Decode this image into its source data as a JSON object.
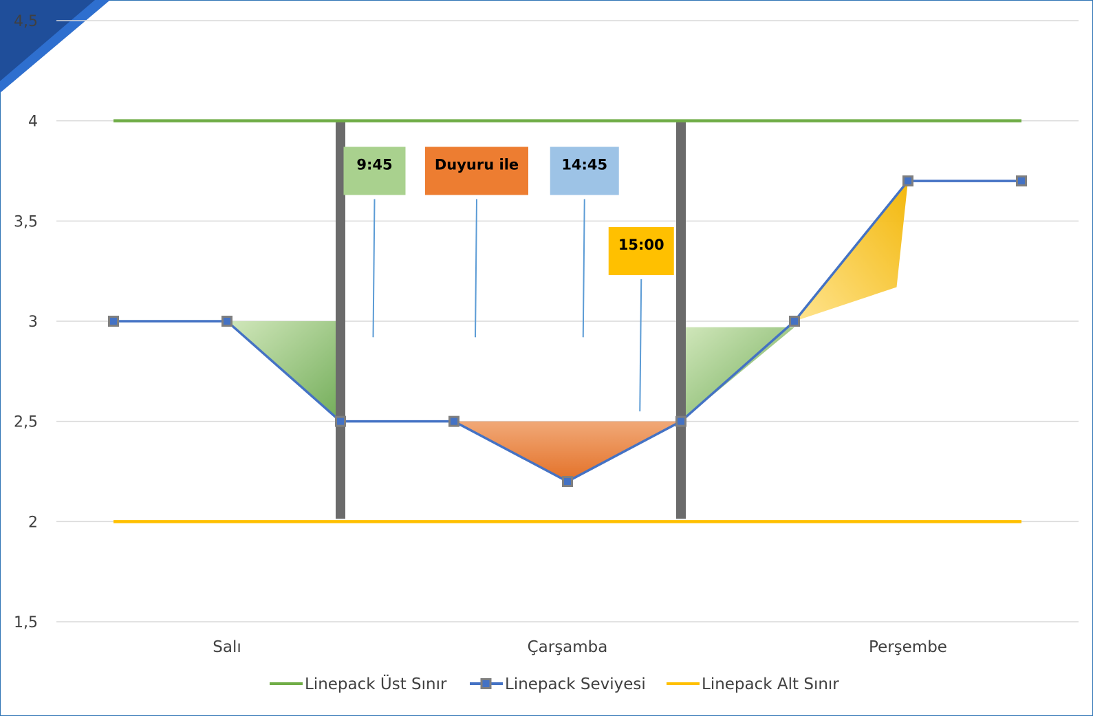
{
  "chart_data": {
    "type": "line",
    "categories": [
      "Salı",
      "Çarşamba",
      "Perşembe"
    ],
    "ylim": [
      1.5,
      4.5
    ],
    "yticks": [
      "1,5",
      "2",
      "2,5",
      "3",
      "3,5",
      "4",
      "4,5"
    ],
    "ytick_values": [
      1.5,
      2,
      2.5,
      3,
      3.5,
      4,
      4.5
    ],
    "grid": true,
    "legend_position": "bottom",
    "series": [
      {
        "name": "Linepack Üst Sınır",
        "color": "#70AD47",
        "marker": false,
        "x": [
          0,
          8
        ],
        "values": [
          4,
          4
        ]
      },
      {
        "name": "Linepack Seviyesi",
        "color": "#4472C4",
        "marker": true,
        "x": [
          0,
          1,
          2,
          3,
          4,
          5,
          6,
          7,
          8
        ],
        "values": [
          3,
          3,
          2.5,
          2.5,
          2.2,
          2.5,
          3,
          3.7,
          3.7
        ]
      },
      {
        "name": "Linepack Alt Sınır",
        "color": "#FFC000",
        "marker": false,
        "x": [
          0,
          8
        ],
        "values": [
          2,
          2
        ]
      }
    ],
    "dividers_x": [
      2,
      5
    ],
    "annotations": [
      {
        "text": "9:45",
        "color": "#A9D18E",
        "x": 2.3,
        "y": 3.75
      },
      {
        "text": "Duyuru ile",
        "color": "#ED7D31",
        "x": 3.2,
        "y": 3.75
      },
      {
        "text": "14:45",
        "color": "#9DC3E6",
        "x": 4.15,
        "y": 3.75
      },
      {
        "text": "15:00",
        "color": "#FFC000",
        "x": 4.65,
        "y": 3.35
      }
    ],
    "highlight_triangles": [
      {
        "color": "#70AD47",
        "points": [
          [
            1,
            3
          ],
          [
            2,
            3
          ],
          [
            2,
            2.5
          ]
        ]
      },
      {
        "color": "#ED7D31",
        "points": [
          [
            3,
            2.5
          ],
          [
            5,
            2.5
          ],
          [
            4,
            2.2
          ]
        ]
      },
      {
        "color": "#70AD47",
        "points": [
          [
            5,
            2.97
          ],
          [
            6,
            2.97
          ],
          [
            5,
            2.5
          ]
        ]
      },
      {
        "color": "#FFC000",
        "points": [
          [
            6,
            3
          ],
          [
            7,
            3.7
          ],
          [
            6.9,
            3.17
          ]
        ]
      }
    ]
  }
}
